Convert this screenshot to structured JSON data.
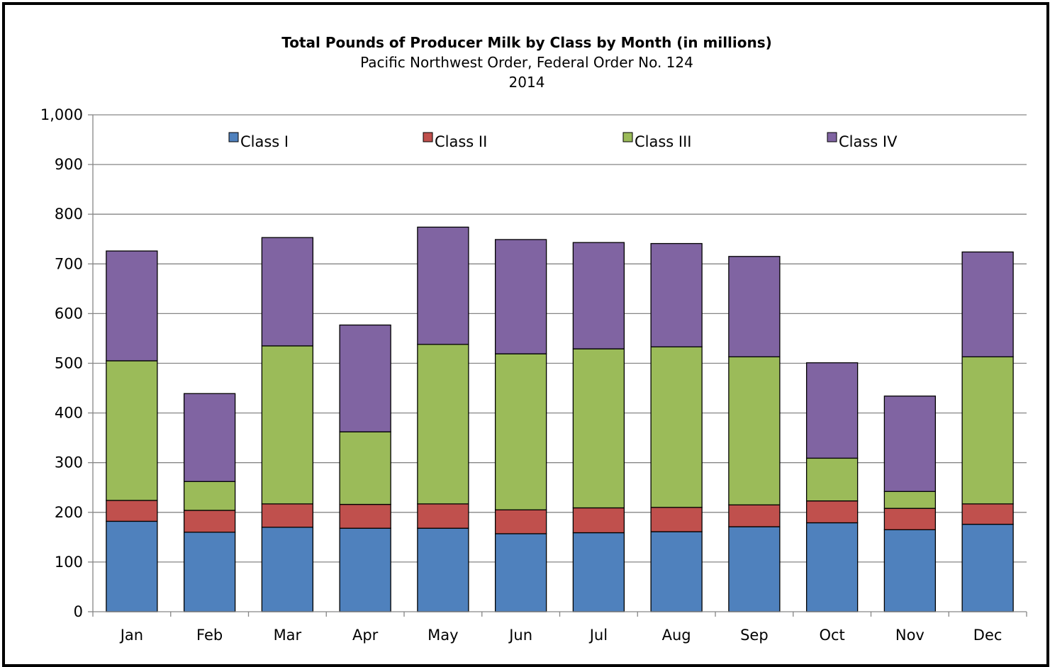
{
  "chart_data": {
    "type": "bar",
    "stacked": true,
    "title": "Total Pounds of Producer Milk by Class by Month (in millions)",
    "subtitle": "Pacific Northwest Order, Federal Order No. 124",
    "subtitle2": "2014",
    "xlabel": "",
    "ylabel": "",
    "ylim": [
      0,
      1000
    ],
    "yticks": [
      0,
      100,
      200,
      300,
      400,
      500,
      600,
      700,
      800,
      900,
      1000
    ],
    "ytick_labels": [
      "0",
      "100",
      "200",
      "300",
      "400",
      "500",
      "600",
      "700",
      "800",
      "900",
      "1,000"
    ],
    "grid": true,
    "legend_position": "top-inside",
    "categories": [
      "Jan",
      "Feb",
      "Mar",
      "Apr",
      "May",
      "Jun",
      "Jul",
      "Aug",
      "Sep",
      "Oct",
      "Nov",
      "Dec"
    ],
    "series": [
      {
        "name": "Class I",
        "color": "#4F81BD",
        "values": [
          182,
          160,
          170,
          168,
          168,
          157,
          159,
          161,
          171,
          179,
          165,
          176
        ]
      },
      {
        "name": "Class II",
        "color": "#C0504D",
        "values": [
          42,
          44,
          47,
          48,
          49,
          48,
          50,
          49,
          44,
          44,
          43,
          41
        ]
      },
      {
        "name": "Class III",
        "color": "#9BBB59",
        "values": [
          281,
          58,
          318,
          146,
          321,
          314,
          320,
          323,
          298,
          86,
          34,
          296
        ]
      },
      {
        "name": "Class IV",
        "color": "#8064A2",
        "values": [
          221,
          177,
          218,
          215,
          236,
          230,
          214,
          208,
          202,
          192,
          192,
          211
        ]
      }
    ]
  }
}
